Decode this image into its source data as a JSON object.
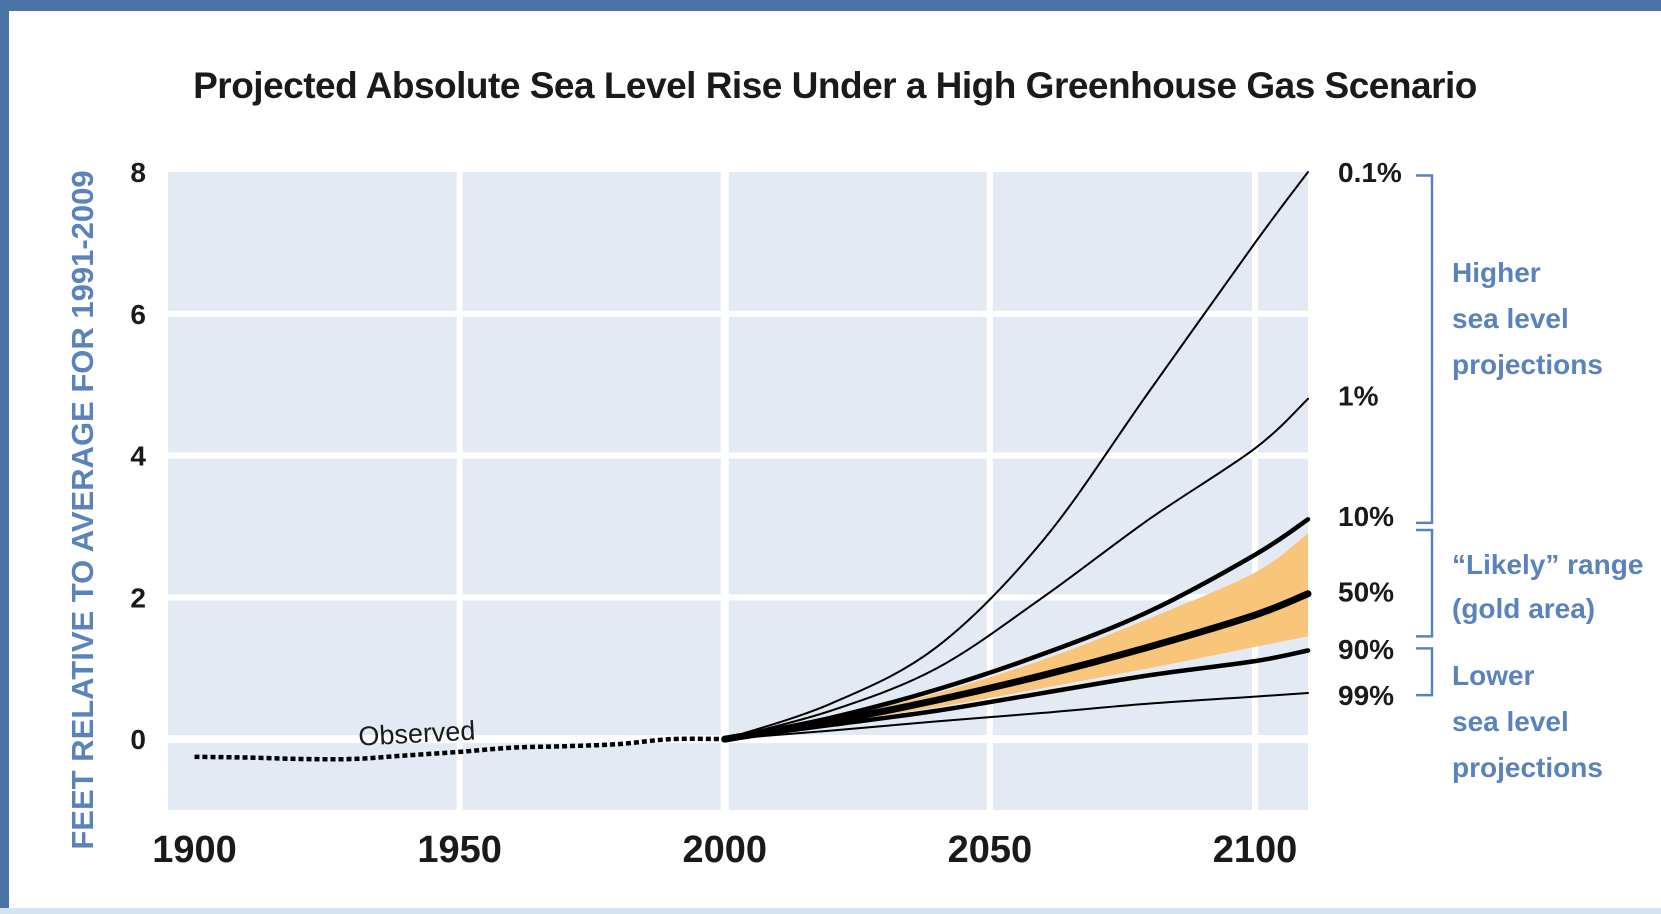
{
  "chart_data": {
    "type": "line",
    "title": "Projected Absolute Sea Level Rise Under a High Greenhouse Gas Scenario",
    "ylabel": "FEET RELATIVE TO AVERAGE FOR 1991-2009",
    "xlabel": "",
    "xlim": [
      1895,
      2110
    ],
    "ylim": [
      -1,
      8
    ],
    "x_ticks": [
      "1900",
      "1950",
      "2000",
      "2050",
      "2100"
    ],
    "x_tick_values": [
      1900,
      1950,
      2000,
      2050,
      2100
    ],
    "y_ticks": [
      "0",
      "2",
      "4",
      "6",
      "8"
    ],
    "y_tick_values": [
      0,
      2,
      4,
      6,
      8
    ],
    "grid": true,
    "observed": {
      "label": "Observed",
      "x": [
        1900,
        1910,
        1920,
        1930,
        1940,
        1950,
        1960,
        1970,
        1980,
        1990,
        2000
      ],
      "y": [
        -0.25,
        -0.26,
        -0.28,
        -0.28,
        -0.23,
        -0.18,
        -0.12,
        -0.1,
        -0.07,
        0.0,
        0.0
      ]
    },
    "series": [
      {
        "name": "0.1%",
        "x": [
          2000,
          2020,
          2040,
          2060,
          2080,
          2100,
          2110
        ],
        "y": [
          0,
          0.5,
          1.3,
          2.8,
          4.9,
          7.0,
          8.0
        ],
        "weight": "thin"
      },
      {
        "name": "1%",
        "x": [
          2000,
          2020,
          2040,
          2060,
          2080,
          2100,
          2110
        ],
        "y": [
          0,
          0.4,
          1.0,
          2.0,
          3.1,
          4.1,
          4.8
        ],
        "weight": "thin"
      },
      {
        "name": "10%",
        "x": [
          2000,
          2020,
          2040,
          2060,
          2080,
          2100,
          2110
        ],
        "y": [
          0,
          0.3,
          0.7,
          1.2,
          1.8,
          2.6,
          3.1
        ],
        "weight": "medium"
      },
      {
        "name": "50%",
        "x": [
          2000,
          2020,
          2040,
          2060,
          2080,
          2100,
          2110
        ],
        "y": [
          0,
          0.25,
          0.55,
          0.9,
          1.3,
          1.75,
          2.05
        ],
        "weight": "heavy"
      },
      {
        "name": "90%",
        "x": [
          2000,
          2020,
          2040,
          2060,
          2080,
          2100,
          2110
        ],
        "y": [
          0,
          0.2,
          0.4,
          0.65,
          0.9,
          1.1,
          1.25
        ],
        "weight": "medium"
      },
      {
        "name": "99%",
        "x": [
          2000,
          2020,
          2040,
          2060,
          2080,
          2100,
          2110
        ],
        "y": [
          0,
          0.12,
          0.25,
          0.37,
          0.5,
          0.6,
          0.65
        ],
        "weight": "thin"
      }
    ],
    "likely_range": {
      "x": [
        2000,
        2020,
        2040,
        2060,
        2080,
        2100,
        2110
      ],
      "upper": [
        0,
        0.28,
        0.65,
        1.12,
        1.7,
        2.35,
        2.9
      ],
      "lower": [
        0,
        0.22,
        0.45,
        0.72,
        1.0,
        1.3,
        1.45
      ],
      "color": "#f9c57a"
    },
    "brackets": [
      {
        "lines": [
          "Higher",
          "sea level",
          "projections"
        ]
      },
      {
        "lines": [
          "“Likely” range",
          "(gold area)"
        ]
      },
      {
        "lines": [
          "Lower",
          "sea level",
          "projections"
        ]
      }
    ],
    "colors": {
      "plot_bg": "#e3eaf3",
      "grid": "#ffffff",
      "line": "#000000",
      "label_blue": "#5a82bd",
      "frame_blue": "#4a73a8"
    }
  }
}
